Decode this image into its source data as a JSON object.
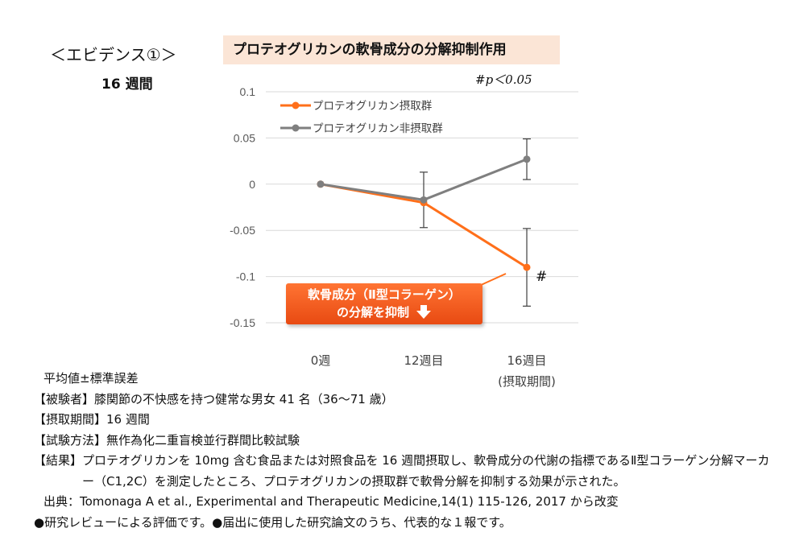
{
  "heading": "＜エビデンス①＞",
  "period": "16 週間",
  "chart_title": "プロテオグリカンの軟骨成分の分解抑制作用",
  "significance_note": "#p＜0.05",
  "callout": {
    "line1": "軟骨成分（Ⅱ型コラーゲン）",
    "line2": "の分解を抑制"
  },
  "chart_data": {
    "type": "line",
    "categories": [
      "0週",
      "12週目",
      "16週目"
    ],
    "category_sublabels": [
      "",
      "",
      "(摂取期間)"
    ],
    "series": [
      {
        "name": "プロテオグリカン摂取群",
        "color": "#ff6f1a",
        "values": [
          0,
          -0.02,
          -0.09
        ],
        "errors": [
          0,
          null,
          0.042
        ]
      },
      {
        "name": "プロテオグリカン非摂取群",
        "color": "#7f7f7f",
        "values": [
          0,
          -0.017,
          0.027
        ],
        "errors": [
          0,
          0.03,
          0.022
        ]
      }
    ],
    "y_ticks": [
      0.1,
      0.05,
      0,
      -0.05,
      -0.1,
      -0.15
    ],
    "y_tick_labels": [
      "0.1",
      "0.05",
      "0",
      "-0.05",
      "-0.1",
      "-0.15"
    ],
    "ylim": [
      -0.15,
      0.1
    ],
    "grid": "horizontal",
    "legend_position": "top-left",
    "annotations": [
      {
        "category": "16週目",
        "text": "#"
      }
    ]
  },
  "notes": {
    "sd": "平均値±標準誤差",
    "subjects": "【被験者】膝関節の不快感を持つ健常な男女 41 名（36～71 歳）",
    "period": "【摂取期間】16 週間",
    "method": "【試験方法】無作為化二重盲検並行群間比較試験",
    "result_label": "【結果】",
    "result_text": "プロテオグリカンを 10mg 含む食品または対照食品を 16 週間摂取し、軟骨成分の代謝の指標であるⅡ型コラーゲン分解マーカー（C1,2C）を測定したところ、プロテオグリカンの摂取群で軟骨分解を抑制する効果が示された。",
    "source": "出典：Tomonaga A et al., Experimental and Therapeutic Medicine,14(1) 115-126, 2017 から改変",
    "footer": "●研究レビューによる評価です。●届出に使用した研究論文のうち、代表的な１報です。"
  }
}
